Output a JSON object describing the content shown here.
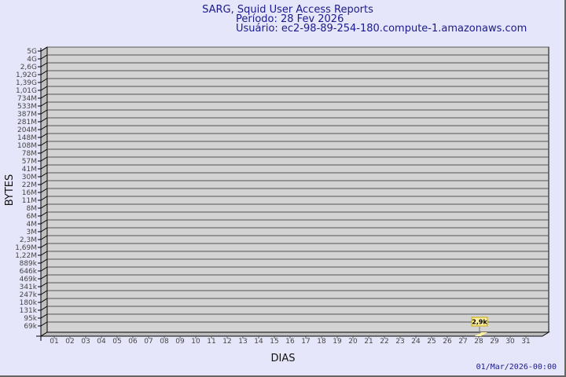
{
  "chart_data": {
    "type": "bar",
    "title": "SARG, Squid User Access Reports",
    "subtitle_period": "Período: 28 Fev 2026",
    "subtitle_user": "Usuário: ec2-98-89-254-180.compute-1.amazonaws.com",
    "xlabel": "DIAS",
    "ylabel": "BYTES",
    "y_scale": "log",
    "grid": true,
    "y_tick_labels": [
      "5G",
      "4G",
      "2,6G",
      "1,92G",
      "1,39G",
      "1,01G",
      "734M",
      "533M",
      "387M",
      "281M",
      "204M",
      "148M",
      "108M",
      "78M",
      "57M",
      "41M",
      "30M",
      "22M",
      "16M",
      "11M",
      "8M",
      "6M",
      "4M",
      "3M",
      "2,3M",
      "1,69M",
      "1,22M",
      "889k",
      "646k",
      "469k",
      "341k",
      "247k",
      "180k",
      "131k",
      "95k",
      "69k"
    ],
    "categories": [
      "01",
      "02",
      "03",
      "04",
      "05",
      "06",
      "07",
      "08",
      "09",
      "10",
      "11",
      "12",
      "13",
      "14",
      "15",
      "16",
      "17",
      "18",
      "19",
      "20",
      "21",
      "22",
      "23",
      "24",
      "25",
      "26",
      "27",
      "28",
      "29",
      "30",
      "31"
    ],
    "bars": [
      {
        "day": "28",
        "value": 2900,
        "label": "2,9k"
      }
    ],
    "bar_color": "#fff0a0",
    "plot_color": "#d3d3d3",
    "footer": "01/Mar/2026-00:00"
  }
}
